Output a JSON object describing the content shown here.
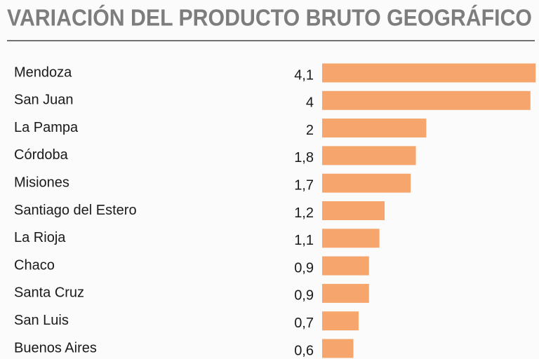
{
  "chart_data": {
    "type": "bar",
    "orientation": "horizontal",
    "title": "VARIACIÓN DEL PRODUCTO BRUTO GEOGRÁFICO",
    "categories": [
      "Mendoza",
      "San Juan",
      "La Pampa",
      "Córdoba",
      "Misiones",
      "Santiago del Estero",
      "La Rioja",
      "Chaco",
      "Santa Cruz",
      "San Luis",
      "Buenos Aires"
    ],
    "values": [
      4.1,
      4,
      2,
      1.8,
      1.7,
      1.2,
      1.1,
      0.9,
      0.9,
      0.7,
      0.6
    ],
    "value_labels": [
      "4,1",
      "4",
      "2",
      "1,8",
      "1,7",
      "1,2",
      "1,1",
      "0,9",
      "0,9",
      "0,7",
      "0,6"
    ],
    "color": "#f6a56c"
  }
}
